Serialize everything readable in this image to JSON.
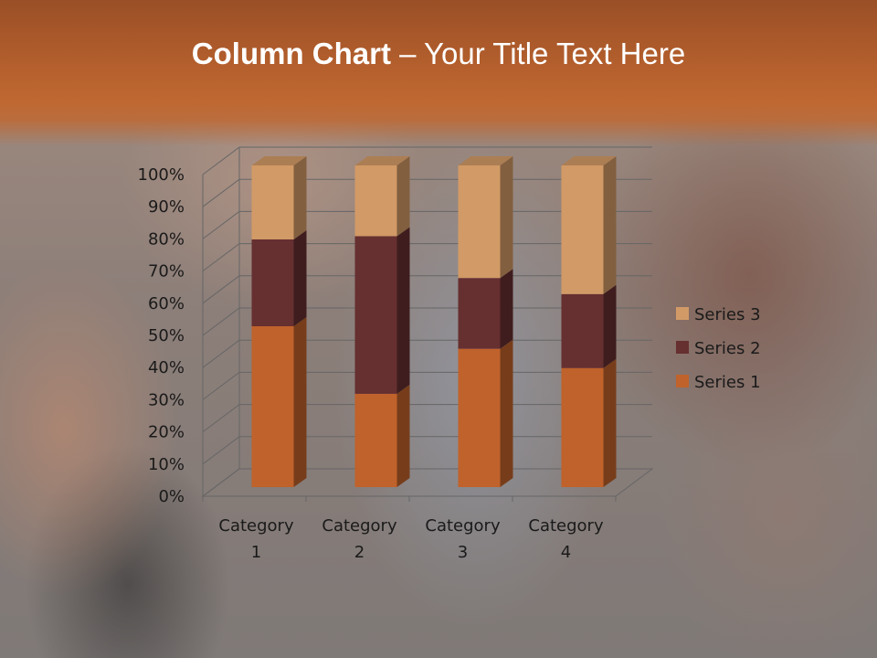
{
  "slide": {
    "title_bold": "Column Chart",
    "title_rest": " – Your Title Text Here"
  },
  "chart_data": {
    "type": "bar",
    "stacked": "100%",
    "three_d": true,
    "categories": [
      [
        "Category",
        "1"
      ],
      [
        "Category",
        "2"
      ],
      [
        "Category",
        "3"
      ],
      [
        "Category",
        "4"
      ]
    ],
    "series": [
      {
        "name": "Series 1",
        "values": [
          50,
          29,
          43,
          37
        ],
        "color": "#c0622b"
      },
      {
        "name": "Series 2",
        "values": [
          27,
          49,
          22,
          23
        ],
        "color": "#662f30"
      },
      {
        "name": "Series 3",
        "values": [
          23,
          22,
          35,
          40
        ],
        "color": "#d29a66"
      }
    ],
    "y_ticks": [
      "0%",
      "10%",
      "20%",
      "30%",
      "40%",
      "50%",
      "60%",
      "70%",
      "80%",
      "90%",
      "100%"
    ],
    "ylim": [
      0,
      100
    ],
    "grid": true,
    "legend_position": "right",
    "legend_order": [
      2,
      1,
      0
    ]
  }
}
